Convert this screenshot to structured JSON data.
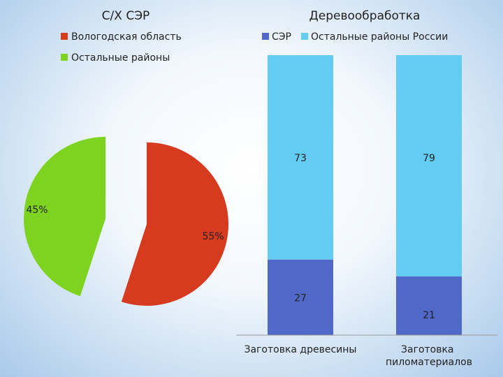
{
  "chart_data": [
    {
      "type": "pie",
      "title": "С/Х СЭР",
      "labels": [
        "Вологодская область",
        "Остальные районы"
      ],
      "values": [
        55,
        45
      ],
      "data_labels": [
        "55%",
        "45%"
      ],
      "colors": [
        "#d63a1f",
        "#7ed321"
      ],
      "legend_position": "top-left",
      "exploded": true
    },
    {
      "type": "bar",
      "stacked": true,
      "title": "Деревообработка",
      "categories": [
        "Заготовка древесины",
        "Заготовка пиломатериалов"
      ],
      "series": [
        {
          "name": "СЭР",
          "values": [
            27,
            21
          ],
          "color": "#5068c8"
        },
        {
          "name": "Остальные районы России",
          "values": [
            73,
            79
          ],
          "color": "#63ccf3"
        }
      ],
      "ylim": [
        0,
        100
      ],
      "legend_position": "top",
      "grid": false
    }
  ]
}
